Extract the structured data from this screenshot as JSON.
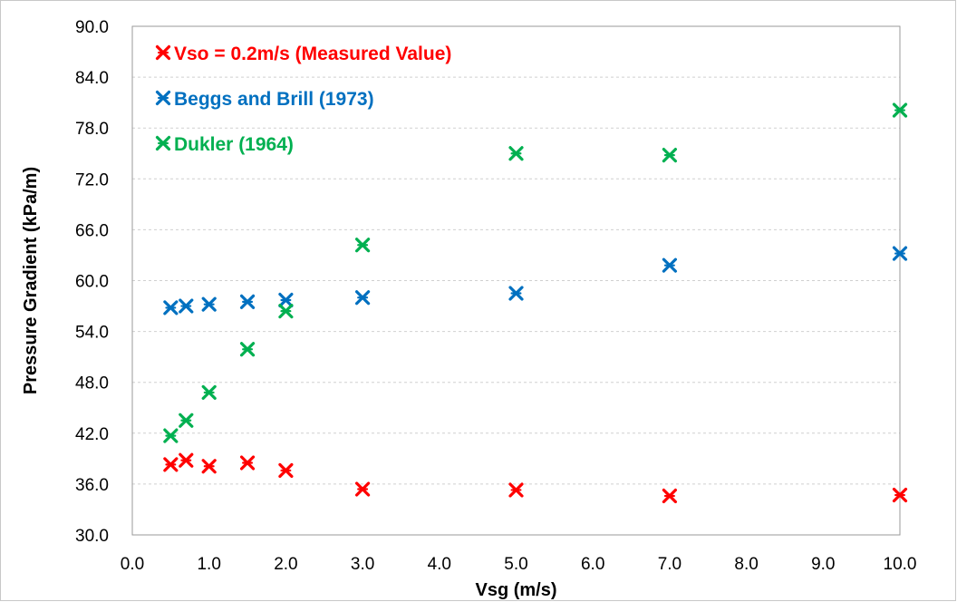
{
  "chart_data": {
    "type": "scatter",
    "xlabel": "Vsg (m/s)",
    "ylabel": "Pressure Gradient (kPa/m)",
    "xlim": [
      0,
      10
    ],
    "ylim": [
      30,
      90
    ],
    "x_ticks": [
      "0.0",
      "1.0",
      "2.0",
      "3.0",
      "4.0",
      "5.0",
      "6.0",
      "7.0",
      "8.0",
      "9.0",
      "10.0"
    ],
    "y_ticks": [
      "30.0",
      "36.0",
      "42.0",
      "48.0",
      "54.0",
      "60.0",
      "66.0",
      "72.0",
      "78.0",
      "84.0",
      "90.0"
    ],
    "grid": true,
    "legend_position": "top-left",
    "series": [
      {
        "name": "Vso = 0.2m/s (Measured Value)",
        "color": "#ff0000",
        "x": [
          0.5,
          0.7,
          1.0,
          1.5,
          2.0,
          3.0,
          5.0,
          7.0,
          10.0
        ],
        "y": [
          38.3,
          38.8,
          38.1,
          38.5,
          37.6,
          35.4,
          35.3,
          34.6,
          34.7
        ]
      },
      {
        "name": "Beggs and Brill (1973)",
        "color": "#0070c0",
        "x": [
          0.5,
          0.7,
          1.0,
          1.5,
          2.0,
          3.0,
          5.0,
          7.0,
          10.0
        ],
        "y": [
          56.8,
          57.0,
          57.2,
          57.5,
          57.7,
          58.0,
          58.5,
          61.8,
          63.2
        ]
      },
      {
        "name": "Dukler (1964)",
        "color": "#00b050",
        "x": [
          0.5,
          0.7,
          1.0,
          1.5,
          2.0,
          3.0,
          5.0,
          7.0,
          10.0
        ],
        "y": [
          41.7,
          43.5,
          46.8,
          51.9,
          56.4,
          64.2,
          75.0,
          74.8,
          80.1
        ]
      }
    ]
  }
}
